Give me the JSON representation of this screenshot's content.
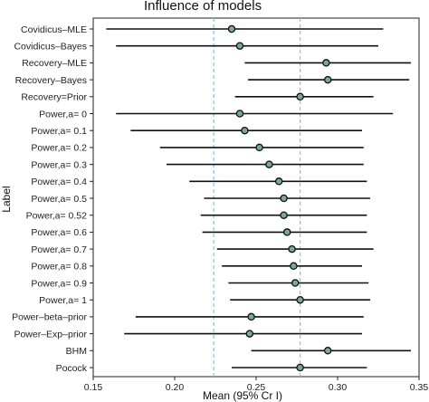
{
  "chart_data": {
    "type": "forest",
    "title": "Influence of models",
    "xlabel": "Mean (95% Cr I)",
    "ylabel": "Label",
    "xlim": [
      0.15,
      0.35
    ],
    "xticks": [
      "0.15",
      "0.20",
      "0.25",
      "0.30",
      "0.35"
    ],
    "reference_lines": [
      0.224,
      0.277
    ],
    "colors": {
      "line": "#111111",
      "point_fill": "#78a8a0",
      "point_stroke": "#111111",
      "reference": "#8ab8d8"
    },
    "rows": [
      {
        "label": "Covidicus–MLE",
        "mean": 0.235,
        "lower": 0.158,
        "upper": 0.328
      },
      {
        "label": "Covidicus–Bayes",
        "mean": 0.24,
        "lower": 0.164,
        "upper": 0.325
      },
      {
        "label": "Recovery–MLE",
        "mean": 0.293,
        "lower": 0.243,
        "upper": 0.345
      },
      {
        "label": "Recovery–Bayes",
        "mean": 0.294,
        "lower": 0.245,
        "upper": 0.344
      },
      {
        "label": "Recovery=Prior",
        "mean": 0.277,
        "lower": 0.237,
        "upper": 0.322
      },
      {
        "label": "Power,a= 0",
        "mean": 0.24,
        "lower": 0.164,
        "upper": 0.334
      },
      {
        "label": "Power,a= 0.1",
        "mean": 0.243,
        "lower": 0.173,
        "upper": 0.315
      },
      {
        "label": "Power,a= 0.2",
        "mean": 0.252,
        "lower": 0.191,
        "upper": 0.316
      },
      {
        "label": "Power,a= 0.3",
        "mean": 0.258,
        "lower": 0.195,
        "upper": 0.316
      },
      {
        "label": "Power,a= 0.4",
        "mean": 0.264,
        "lower": 0.209,
        "upper": 0.318
      },
      {
        "label": "Power,a= 0.5",
        "mean": 0.267,
        "lower": 0.218,
        "upper": 0.32
      },
      {
        "label": "Power,a= 0.52",
        "mean": 0.267,
        "lower": 0.216,
        "upper": 0.318
      },
      {
        "label": "Power,a= 0.6",
        "mean": 0.269,
        "lower": 0.217,
        "upper": 0.318
      },
      {
        "label": "Power,a= 0.7",
        "mean": 0.272,
        "lower": 0.226,
        "upper": 0.322
      },
      {
        "label": "Power,a= 0.8",
        "mean": 0.273,
        "lower": 0.229,
        "upper": 0.315
      },
      {
        "label": "Power,a= 0.9",
        "mean": 0.274,
        "lower": 0.233,
        "upper": 0.319
      },
      {
        "label": "Power,a= 1",
        "mean": 0.277,
        "lower": 0.234,
        "upper": 0.32
      },
      {
        "label": "Power–beta–prior",
        "mean": 0.247,
        "lower": 0.176,
        "upper": 0.316
      },
      {
        "label": "Power–Exp–prior",
        "mean": 0.246,
        "lower": 0.169,
        "upper": 0.315
      },
      {
        "label": "BHM",
        "mean": 0.294,
        "lower": 0.247,
        "upper": 0.345
      },
      {
        "label": "Pocock",
        "mean": 0.277,
        "lower": 0.235,
        "upper": 0.318
      }
    ]
  }
}
